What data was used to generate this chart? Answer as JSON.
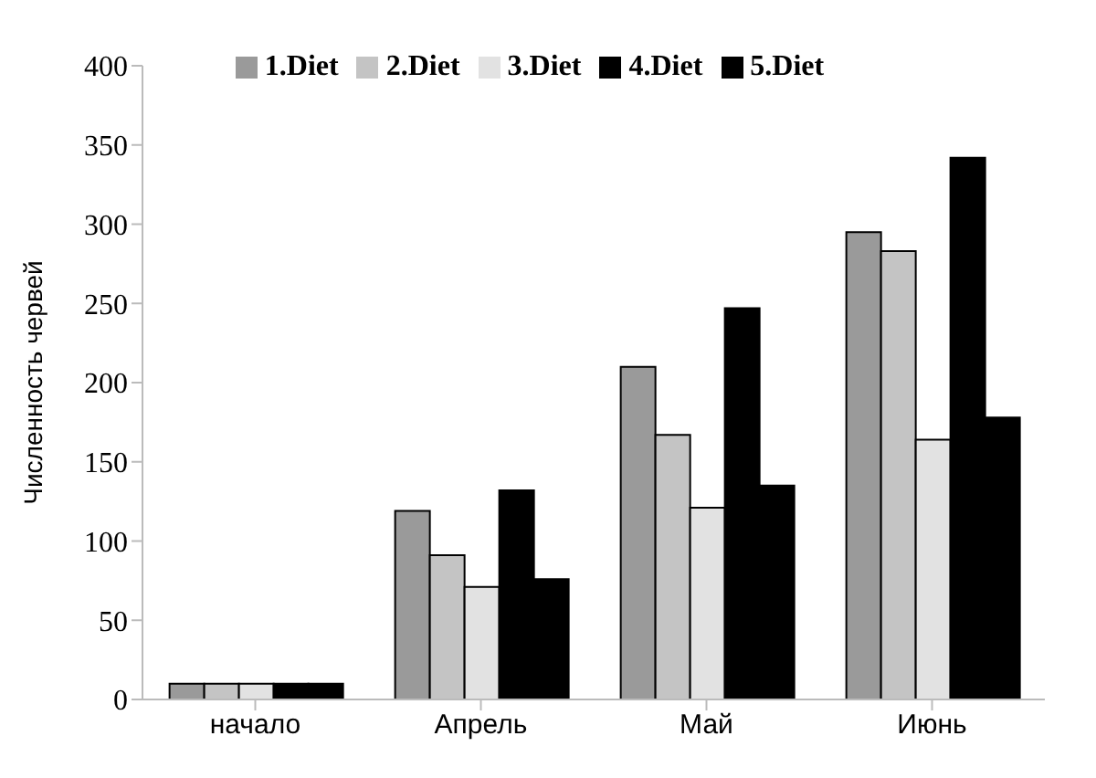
{
  "chart_data": {
    "type": "bar",
    "ylabel": "Численность червей",
    "categories": [
      "начало",
      "Апрель",
      "Май",
      "Июнь"
    ],
    "series": [
      {
        "name": "1.Diet",
        "color": "#9a9a9a",
        "values": [
          10,
          119,
          210,
          295
        ]
      },
      {
        "name": "2.Diet",
        "color": "#c4c4c4",
        "values": [
          10,
          91,
          167,
          283
        ]
      },
      {
        "name": "3.Diet",
        "color": "#e2e2e2",
        "values": [
          10,
          71,
          121,
          164
        ]
      },
      {
        "name": "4.Diet",
        "color": "#000000",
        "values": [
          10,
          132,
          247,
          342
        ]
      },
      {
        "name": "5.Diet",
        "color": "#000000",
        "values": [
          10,
          76,
          135,
          178
        ]
      }
    ],
    "ylim": [
      0,
      400
    ],
    "yticks": [
      0,
      50,
      100,
      150,
      200,
      250,
      300,
      350,
      400
    ],
    "grid": false,
    "legend": "top"
  }
}
